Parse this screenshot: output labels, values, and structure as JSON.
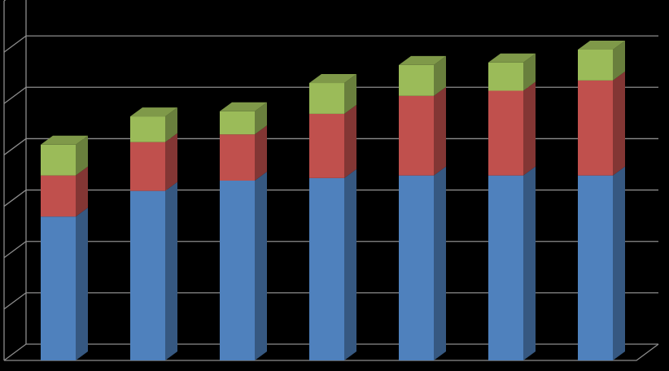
{
  "chart_data": {
    "type": "bar",
    "stacked": true,
    "three_d": true,
    "grid": true,
    "legend": "none",
    "title": "",
    "xlabel": "",
    "ylabel": "",
    "ylim": [
      0,
      7
    ],
    "categories": [
      "",
      "",
      "",
      "",
      "",
      "",
      ""
    ],
    "series": [
      {
        "color": "#4F81BD",
        "values": [
          2.8,
          3.3,
          3.5,
          3.55,
          3.6,
          3.6,
          3.6
        ]
      },
      {
        "color": "#C0504D",
        "values": [
          0.8,
          0.95,
          0.9,
          1.25,
          1.55,
          1.65,
          1.85
        ]
      },
      {
        "color": "#9BBB59",
        "values": [
          0.6,
          0.5,
          0.45,
          0.6,
          0.6,
          0.55,
          0.6
        ]
      }
    ],
    "background": "#000000",
    "gridline_color": "#8C8C8C"
  }
}
